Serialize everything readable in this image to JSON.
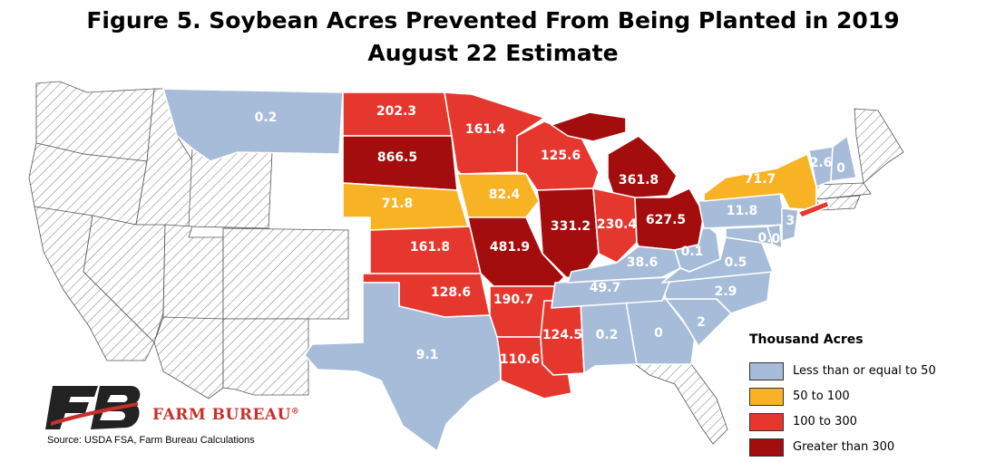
{
  "title": {
    "line1": "Figure 5. Soybean Acres Prevented From Being Planted in 2019",
    "line2": "August 22 Estimate"
  },
  "legend": {
    "title": "Thousand Acres",
    "items": [
      {
        "label": "Less than or equal to 50",
        "color": "#a6bcd8"
      },
      {
        "label": "50 to 100",
        "color": "#f8b325"
      },
      {
        "label": "100 to 300",
        "color": "#e6372f"
      },
      {
        "label": "Greater than 300",
        "color": "#a40d0d"
      }
    ]
  },
  "colors": {
    "low": "#a6bcd8",
    "mid": "#f8b325",
    "high": "#e6372f",
    "top": "#a40d0d"
  },
  "states": [
    {
      "abbr": "MT",
      "value": "0.2"
    },
    {
      "abbr": "ND",
      "value": "202.3"
    },
    {
      "abbr": "MN",
      "value": "161.4"
    },
    {
      "abbr": "SD",
      "value": "866.5"
    },
    {
      "abbr": "WI",
      "value": "125.6"
    },
    {
      "abbr": "MI",
      "value": "361.8"
    },
    {
      "abbr": "NE",
      "value": "71.8"
    },
    {
      "abbr": "IA",
      "value": "82.4"
    },
    {
      "abbr": "IL",
      "value": "331.2"
    },
    {
      "abbr": "IN",
      "value": "230.4"
    },
    {
      "abbr": "OH",
      "value": "627.5"
    },
    {
      "abbr": "KS",
      "value": "161.8"
    },
    {
      "abbr": "MO",
      "value": "481.9"
    },
    {
      "abbr": "OK",
      "value": "128.6"
    },
    {
      "abbr": "AR",
      "value": "190.7"
    },
    {
      "abbr": "TX",
      "value": "9.1"
    },
    {
      "abbr": "LA",
      "value": "110.6"
    },
    {
      "abbr": "MS",
      "value": "124.5"
    },
    {
      "abbr": "AL",
      "value": "0.2"
    },
    {
      "abbr": "GA",
      "value": "0"
    },
    {
      "abbr": "SC",
      "value": "2"
    },
    {
      "abbr": "NC",
      "value": "2.9"
    },
    {
      "abbr": "TN",
      "value": "49.7"
    },
    {
      "abbr": "KY",
      "value": "38.6"
    },
    {
      "abbr": "WV",
      "value": "0.1"
    },
    {
      "abbr": "VA",
      "value": "0.5"
    },
    {
      "abbr": "PA",
      "value": "11.8"
    },
    {
      "abbr": "NY",
      "value": "71.7"
    },
    {
      "abbr": "VT",
      "value": "2.6"
    },
    {
      "abbr": "NH",
      "value": "0"
    },
    {
      "abbr": "NJ",
      "value": "3."
    },
    {
      "abbr": "DE",
      "value": "0."
    },
    {
      "abbr": "MD",
      "value": "0."
    }
  ],
  "brand": {
    "name": "FARM BUREAU",
    "mark": "®"
  },
  "source": "Source: USDA FSA, Farm Bureau Calculations"
}
